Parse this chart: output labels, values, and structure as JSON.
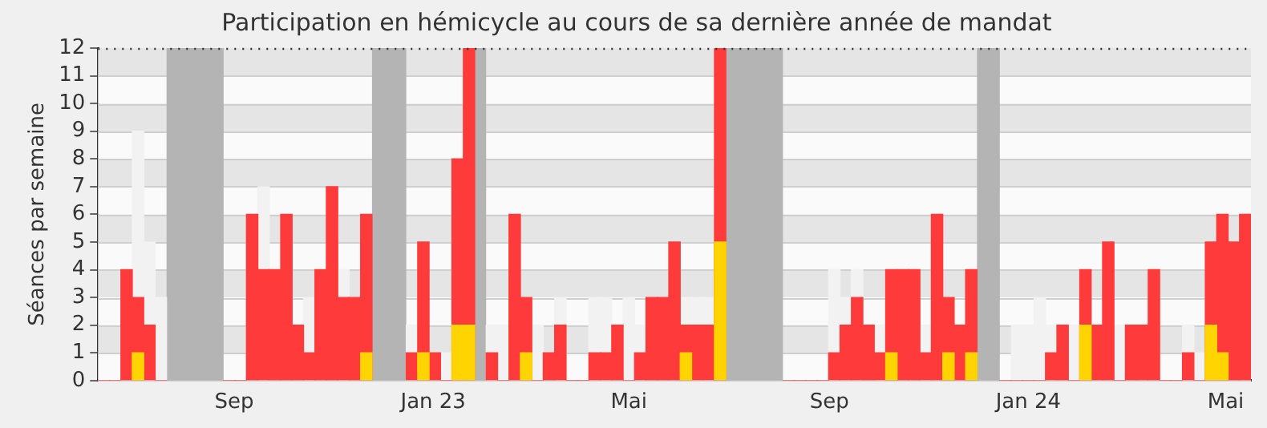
{
  "chart_data": {
    "type": "bar",
    "title": "Participation en hémicycle au cours de sa dernière année de mandat",
    "ylabel": "Séances par semaine",
    "x": [
      "2022-06-13",
      "2022-06-20",
      "2022-06-27",
      "2022-07-04",
      "2022-07-11",
      "2022-07-18",
      "2022-07-25",
      "2022-08-01",
      "2022-08-08",
      "2022-08-15",
      "2022-08-22",
      "2022-08-29",
      "2022-09-05",
      "2022-09-12",
      "2022-09-19",
      "2022-09-26",
      "2022-10-03",
      "2022-10-10",
      "2022-10-17",
      "2022-10-24",
      "2022-10-31",
      "2022-11-07",
      "2022-11-14",
      "2022-11-21",
      "2022-11-28",
      "2022-12-05",
      "2022-12-12",
      "2022-12-19",
      "2022-12-26",
      "2023-01-02",
      "2023-01-09",
      "2023-01-16",
      "2023-01-23",
      "2023-01-30",
      "2023-02-06",
      "2023-02-13",
      "2023-02-20",
      "2023-02-27",
      "2023-03-06",
      "2023-03-13",
      "2023-03-20",
      "2023-03-27",
      "2023-04-03",
      "2023-04-10",
      "2023-04-17",
      "2023-04-24",
      "2023-05-01",
      "2023-05-08",
      "2023-05-15",
      "2023-05-22",
      "2023-05-29",
      "2023-06-05",
      "2023-06-12",
      "2023-06-19",
      "2023-06-26",
      "2023-07-03",
      "2023-07-10",
      "2023-07-17",
      "2023-07-24",
      "2023-07-31",
      "2023-08-07",
      "2023-08-14",
      "2023-08-21",
      "2023-08-28",
      "2023-09-04",
      "2023-09-11",
      "2023-09-18",
      "2023-09-25",
      "2023-10-02",
      "2023-10-09",
      "2023-10-16",
      "2023-10-23",
      "2023-10-30",
      "2023-11-06",
      "2023-11-13",
      "2023-11-20",
      "2023-11-27",
      "2023-12-04",
      "2023-12-11",
      "2023-12-18",
      "2023-12-25",
      "2024-01-01",
      "2024-01-08",
      "2024-01-15",
      "2024-01-22",
      "2024-01-29",
      "2024-02-05",
      "2024-02-12",
      "2024-02-19",
      "2024-02-26",
      "2024-03-04",
      "2024-03-11",
      "2024-03-18",
      "2024-03-25",
      "2024-04-01",
      "2024-04-08",
      "2024-04-15",
      "2024-04-22",
      "2024-04-29",
      "2024-05-06",
      "2024-05-13"
    ],
    "series": [
      {
        "color": "#f2f2f2",
        "values": [
          null,
          null,
          null,
          9,
          5,
          3,
          null,
          null,
          null,
          null,
          null,
          null,
          null,
          null,
          7,
          null,
          null,
          null,
          3,
          null,
          null,
          4,
          null,
          null,
          null,
          null,
          null,
          2,
          null,
          null,
          1,
          null,
          null,
          null,
          2,
          2,
          null,
          null,
          2,
          null,
          3,
          null,
          null,
          3,
          3,
          null,
          3,
          2,
          null,
          null,
          null,
          3,
          3,
          3,
          null,
          null,
          null,
          null,
          null,
          null,
          null,
          null,
          null,
          null,
          4,
          3,
          4,
          null,
          2,
          null,
          null,
          null,
          2,
          null,
          null,
          null,
          null,
          null,
          null,
          null,
          2,
          2,
          3,
          2,
          null,
          2,
          null,
          null,
          null,
          2,
          null,
          null,
          null,
          null,
          null,
          2,
          1,
          null,
          null,
          null,
          null
        ]
      },
      {
        "color": "#ff3a3a",
        "values": [
          0,
          0,
          4,
          3,
          2,
          0,
          null,
          null,
          null,
          null,
          null,
          0,
          0,
          6,
          4,
          4,
          6,
          2,
          1,
          4,
          7,
          3,
          3,
          6,
          null,
          null,
          null,
          1,
          5,
          1,
          0,
          8,
          12,
          null,
          1,
          0,
          6,
          3,
          0,
          1,
          2,
          0,
          0,
          1,
          1,
          2,
          0,
          1,
          3,
          3,
          5,
          2,
          2,
          2,
          12,
          null,
          null,
          null,
          null,
          null,
          0,
          0,
          0,
          0,
          1,
          2,
          3,
          2,
          1,
          4,
          4,
          4,
          1,
          6,
          3,
          2,
          4,
          null,
          null,
          0,
          0,
          0,
          0,
          1,
          2,
          0,
          4,
          2,
          5,
          0,
          2,
          2,
          4,
          0,
          0,
          1,
          0,
          5,
          6,
          5,
          6
        ]
      },
      {
        "color": "#ffd400",
        "values": [
          null,
          null,
          null,
          1,
          null,
          null,
          null,
          null,
          null,
          null,
          null,
          null,
          null,
          null,
          null,
          null,
          null,
          null,
          null,
          null,
          null,
          null,
          null,
          1,
          null,
          null,
          null,
          null,
          1,
          null,
          null,
          2,
          2,
          null,
          null,
          null,
          null,
          1,
          null,
          null,
          null,
          null,
          null,
          null,
          null,
          null,
          null,
          null,
          null,
          null,
          null,
          1,
          null,
          null,
          5,
          null,
          null,
          null,
          null,
          null,
          null,
          null,
          null,
          null,
          null,
          null,
          null,
          null,
          null,
          1,
          null,
          null,
          null,
          null,
          1,
          null,
          1,
          null,
          null,
          null,
          null,
          null,
          null,
          null,
          null,
          null,
          2,
          null,
          null,
          null,
          null,
          null,
          null,
          null,
          null,
          null,
          null,
          2,
          1,
          null,
          null
        ]
      }
    ],
    "bands": [
      {
        "axis": "x",
        "from": "2022-07-21T12:00",
        "to": "2022-08-25T12:00",
        "color": "#b4b4b4"
      },
      {
        "axis": "x",
        "from": "2022-11-24T12:00",
        "to": "2022-12-15T12:00",
        "color": "#b4b4b4"
      },
      {
        "axis": "x",
        "from": "2023-01-26T12:00",
        "to": "2023-02-02T12:00",
        "color": "#b4b4b4"
      },
      {
        "axis": "x",
        "from": "2023-06-29T12:00",
        "to": "2023-08-03T12:00",
        "color": "#b4b4b4"
      },
      {
        "axis": "x",
        "from": "2023-11-30T12:00",
        "to": "2023-12-14T12:00",
        "color": "#b4b4b4"
      }
    ],
    "xlim": [
      "2022-06-09T12:00",
      "2024-05-16T12:00"
    ],
    "xticks": [
      {
        "value": "2022-09-01",
        "label": "Sep"
      },
      {
        "value": "2023-01-01",
        "label": "Jan 23"
      },
      {
        "value": "2023-05-01",
        "label": "Mai"
      },
      {
        "value": "2023-09-01",
        "label": "Sep"
      },
      {
        "value": "2024-01-01",
        "label": "Jan 24"
      },
      {
        "value": "2024-05-01",
        "label": "Mai"
      }
    ],
    "ylim": [
      0,
      12
    ],
    "yticks": [
      0,
      1,
      2,
      3,
      4,
      5,
      6,
      7,
      8,
      9,
      10,
      11,
      12
    ],
    "grid": "y"
  }
}
